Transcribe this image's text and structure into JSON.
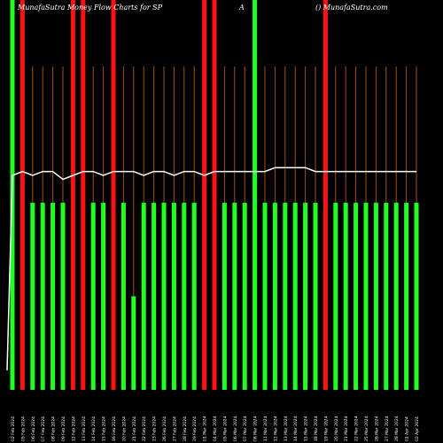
{
  "header": {
    "title": "MunafaSutra  Money Flow  Charts for SP",
    "mid": "A",
    "brand": "() MunafaSutra.com"
  },
  "colors": {
    "background": "#000000",
    "inflow": "#22ff22",
    "outflow": "#ff1111",
    "grid": "#a0520f",
    "line": "#ffffff",
    "tick": "#ffffff"
  },
  "chart_data": {
    "type": "bar",
    "title": "MunafaSutra  Money Flow  Charts for SP",
    "categories": [
      "02 Feb 2024",
      "05 Feb 2024",
      "06 Feb 2024",
      "07 Feb 2024",
      "08 Feb 2024",
      "09 Feb 2024",
      "12 Feb 2024",
      "13 Feb 2024",
      "14 Feb 2024",
      "15 Feb 2024",
      "16 Feb 2024",
      "20 Feb 2024",
      "21 Feb 2024",
      "22 Feb 2024",
      "23 Feb 2024",
      "26 Feb 2024",
      "27 Feb 2024",
      "28 Feb 2024",
      "29 Feb 2024",
      "01 Mar 2024",
      "04 Mar 2024",
      "05 Mar 2024",
      "06 Mar 2024",
      "07 Mar 2024",
      "08 Mar 2024",
      "11 Mar 2024",
      "12 Mar 2024",
      "13 Mar 2024",
      "14 Mar 2024",
      "15 Mar 2024",
      "18 Mar 2024",
      "19 Mar 2024",
      "20 Mar 2024",
      "21 Mar 2024",
      "22 Mar 2024",
      "25 Mar 2024",
      "26 Mar 2024",
      "27 Mar 2024",
      "28 Mar 2024",
      "01 Apr 2024",
      "02 Apr 2024"
    ],
    "series": [
      {
        "values": [
          100,
          100,
          48,
          48,
          48,
          48,
          100,
          100,
          48,
          48,
          100,
          48,
          24,
          48,
          48,
          48,
          48,
          48,
          48,
          100,
          100,
          48,
          48,
          48,
          100,
          48,
          48,
          48,
          48,
          48,
          48,
          100,
          48,
          48,
          48,
          48,
          48,
          48,
          48,
          48,
          48
        ]
      },
      {
        "values": [
          55,
          56,
          55,
          56,
          56,
          54,
          55,
          56,
          56,
          55,
          56,
          56,
          56,
          55,
          56,
          56,
          55,
          56,
          56,
          55,
          56,
          56,
          56,
          56,
          56,
          56,
          57,
          57,
          57,
          57,
          56,
          56,
          56,
          56,
          56,
          56,
          56,
          56,
          56,
          56,
          56
        ]
      }
    ],
    "flow": [
      "in",
      "out",
      "in",
      "in",
      "in",
      "in",
      "out",
      "out",
      "in",
      "in",
      "out",
      "in",
      "in",
      "in",
      "in",
      "in",
      "in",
      "in",
      "in",
      "out",
      "out",
      "in",
      "in",
      "in",
      "in",
      "in",
      "in",
      "in",
      "in",
      "in",
      "in",
      "out",
      "in",
      "in",
      "in",
      "in",
      "in",
      "in",
      "in",
      "in",
      "in"
    ],
    "ylim": [
      0,
      100
    ],
    "grid": true
  }
}
